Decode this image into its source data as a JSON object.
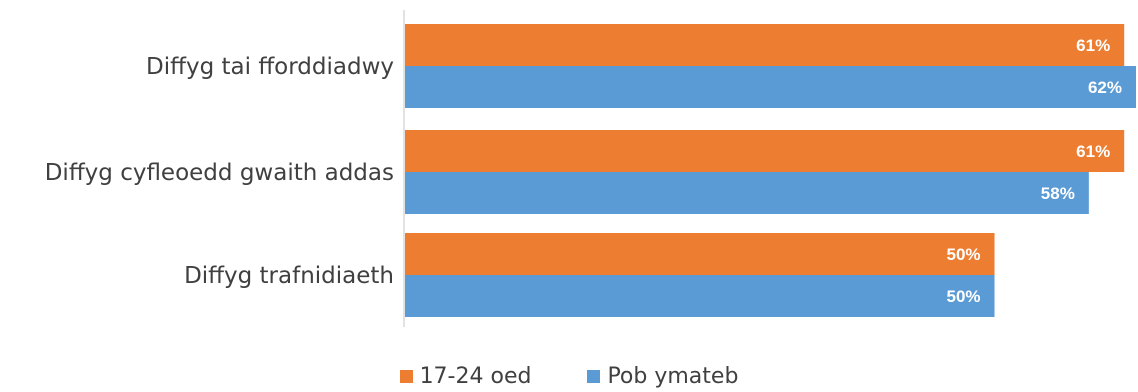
{
  "chart_data": {
    "type": "bar",
    "orientation": "horizontal",
    "categories": [
      "Diffyg tai fforddiadwy",
      "Diffyg cyfleoedd gwaith addas",
      "Diffyg trafnidiaeth"
    ],
    "series": [
      {
        "name": "17-24 oed",
        "color": "#ED7D31",
        "values": [
          61,
          61,
          50
        ],
        "labels": [
          "61%",
          "61%",
          "50%"
        ]
      },
      {
        "name": "Pob ymateb",
        "color": "#5B9BD5",
        "values": [
          62,
          58,
          50
        ],
        "labels": [
          "62%",
          "58%",
          "50%"
        ]
      }
    ],
    "xlim": [
      0,
      62
    ],
    "grid": false,
    "legend": "bottom",
    "data_labels": true
  }
}
